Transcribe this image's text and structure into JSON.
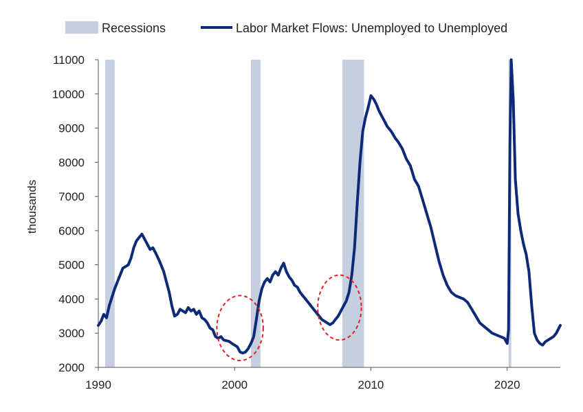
{
  "chart_data": {
    "type": "line",
    "title": "",
    "xlabel": "",
    "ylabel": "thousands",
    "xlim": [
      1990,
      2023.9
    ],
    "ylim": [
      2000,
      11000
    ],
    "x_ticks": [
      1990,
      2000,
      2010,
      2020
    ],
    "y_ticks": [
      2000,
      3000,
      4000,
      5000,
      6000,
      7000,
      8000,
      9000,
      10000,
      11000
    ],
    "grid": false,
    "legend_position": "top",
    "legend": [
      {
        "label": "Recessions",
        "kind": "area",
        "color": "#c5cfdf"
      },
      {
        "label": "Labor Market Flows: Unemployed to Unemployed",
        "kind": "line",
        "color": "#0d2a78"
      }
    ],
    "recessions": [
      {
        "start": 1990.5,
        "end": 1991.2
      },
      {
        "start": 2001.2,
        "end": 2001.9
      },
      {
        "start": 2007.9,
        "end": 2009.5
      },
      {
        "start": 2020.1,
        "end": 2020.3
      }
    ],
    "annotations": [
      {
        "kind": "dashed-ellipse",
        "color": "#e02020",
        "center": [
          2000.4,
          3150
        ],
        "radius": [
          1.7,
          950
        ]
      },
      {
        "kind": "dashed-ellipse",
        "color": "#e02020",
        "center": [
          2007.7,
          3750
        ],
        "radius": [
          1.6,
          950
        ]
      }
    ],
    "series": [
      {
        "name": "Labor Market Flows: Unemployed to Unemployed",
        "color": "#0d2a78",
        "points": [
          [
            1990.0,
            3230
          ],
          [
            1990.2,
            3350
          ],
          [
            1990.4,
            3550
          ],
          [
            1990.6,
            3450
          ],
          [
            1990.8,
            3800
          ],
          [
            1991.0,
            4050
          ],
          [
            1991.2,
            4300
          ],
          [
            1991.5,
            4600
          ],
          [
            1991.8,
            4900
          ],
          [
            1992.0,
            4950
          ],
          [
            1992.2,
            5000
          ],
          [
            1992.4,
            5200
          ],
          [
            1992.6,
            5500
          ],
          [
            1992.8,
            5700
          ],
          [
            1993.0,
            5800
          ],
          [
            1993.2,
            5900
          ],
          [
            1993.4,
            5750
          ],
          [
            1993.6,
            5600
          ],
          [
            1993.8,
            5450
          ],
          [
            1994.0,
            5500
          ],
          [
            1994.2,
            5350
          ],
          [
            1994.5,
            5100
          ],
          [
            1994.8,
            4800
          ],
          [
            1995.0,
            4500
          ],
          [
            1995.2,
            4200
          ],
          [
            1995.4,
            3800
          ],
          [
            1995.6,
            3500
          ],
          [
            1995.8,
            3550
          ],
          [
            1996.0,
            3700
          ],
          [
            1996.2,
            3650
          ],
          [
            1996.4,
            3600
          ],
          [
            1996.6,
            3750
          ],
          [
            1996.8,
            3650
          ],
          [
            1997.0,
            3700
          ],
          [
            1997.2,
            3550
          ],
          [
            1997.4,
            3650
          ],
          [
            1997.6,
            3450
          ],
          [
            1997.8,
            3400
          ],
          [
            1998.0,
            3300
          ],
          [
            1998.2,
            3150
          ],
          [
            1998.4,
            3100
          ],
          [
            1998.6,
            2900
          ],
          [
            1998.8,
            2850
          ],
          [
            1999.0,
            2900
          ],
          [
            1999.2,
            2800
          ],
          [
            1999.4,
            2780
          ],
          [
            1999.6,
            2760
          ],
          [
            1999.8,
            2700
          ],
          [
            2000.0,
            2650
          ],
          [
            2000.2,
            2600
          ],
          [
            2000.4,
            2450
          ],
          [
            2000.6,
            2420
          ],
          [
            2000.8,
            2450
          ],
          [
            2001.0,
            2550
          ],
          [
            2001.2,
            2700
          ],
          [
            2001.4,
            2900
          ],
          [
            2001.6,
            3400
          ],
          [
            2001.8,
            3950
          ],
          [
            2002.0,
            4300
          ],
          [
            2002.2,
            4500
          ],
          [
            2002.4,
            4600
          ],
          [
            2002.6,
            4500
          ],
          [
            2002.8,
            4700
          ],
          [
            2003.0,
            4800
          ],
          [
            2003.2,
            4700
          ],
          [
            2003.4,
            4900
          ],
          [
            2003.6,
            5050
          ],
          [
            2003.8,
            4800
          ],
          [
            2004.0,
            4650
          ],
          [
            2004.2,
            4550
          ],
          [
            2004.4,
            4400
          ],
          [
            2004.6,
            4350
          ],
          [
            2004.8,
            4200
          ],
          [
            2005.0,
            4100
          ],
          [
            2005.2,
            4000
          ],
          [
            2005.4,
            3900
          ],
          [
            2005.6,
            3800
          ],
          [
            2005.8,
            3700
          ],
          [
            2006.0,
            3600
          ],
          [
            2006.2,
            3500
          ],
          [
            2006.4,
            3400
          ],
          [
            2006.6,
            3350
          ],
          [
            2006.8,
            3300
          ],
          [
            2007.0,
            3250
          ],
          [
            2007.2,
            3300
          ],
          [
            2007.4,
            3400
          ],
          [
            2007.6,
            3500
          ],
          [
            2007.8,
            3650
          ],
          [
            2008.0,
            3800
          ],
          [
            2008.2,
            3950
          ],
          [
            2008.4,
            4200
          ],
          [
            2008.6,
            4700
          ],
          [
            2008.8,
            5500
          ],
          [
            2009.0,
            6800
          ],
          [
            2009.2,
            8000
          ],
          [
            2009.4,
            8900
          ],
          [
            2009.6,
            9300
          ],
          [
            2009.8,
            9600
          ],
          [
            2010.0,
            9950
          ],
          [
            2010.2,
            9850
          ],
          [
            2010.4,
            9700
          ],
          [
            2010.6,
            9500
          ],
          [
            2010.8,
            9350
          ],
          [
            2011.0,
            9200
          ],
          [
            2011.2,
            9050
          ],
          [
            2011.5,
            8900
          ],
          [
            2011.8,
            8700
          ],
          [
            2012.0,
            8600
          ],
          [
            2012.3,
            8400
          ],
          [
            2012.6,
            8100
          ],
          [
            2012.9,
            7900
          ],
          [
            2013.2,
            7500
          ],
          [
            2013.5,
            7300
          ],
          [
            2013.8,
            6900
          ],
          [
            2014.1,
            6500
          ],
          [
            2014.4,
            6100
          ],
          [
            2014.7,
            5600
          ],
          [
            2015.0,
            5100
          ],
          [
            2015.3,
            4700
          ],
          [
            2015.6,
            4400
          ],
          [
            2015.9,
            4200
          ],
          [
            2016.2,
            4100
          ],
          [
            2016.5,
            4050
          ],
          [
            2016.8,
            4000
          ],
          [
            2017.1,
            3900
          ],
          [
            2017.4,
            3700
          ],
          [
            2017.7,
            3500
          ],
          [
            2018.0,
            3300
          ],
          [
            2018.3,
            3200
          ],
          [
            2018.6,
            3100
          ],
          [
            2018.9,
            3000
          ],
          [
            2019.2,
            2950
          ],
          [
            2019.5,
            2900
          ],
          [
            2019.8,
            2850
          ],
          [
            2020.0,
            2700
          ],
          [
            2020.1,
            3100
          ],
          [
            2020.2,
            8500
          ],
          [
            2020.3,
            11000
          ],
          [
            2020.45,
            9800
          ],
          [
            2020.6,
            7500
          ],
          [
            2020.8,
            6500
          ],
          [
            2021.0,
            6000
          ],
          [
            2021.2,
            5600
          ],
          [
            2021.4,
            5300
          ],
          [
            2021.6,
            4800
          ],
          [
            2021.8,
            3800
          ],
          [
            2022.0,
            3000
          ],
          [
            2022.2,
            2800
          ],
          [
            2022.4,
            2700
          ],
          [
            2022.6,
            2650
          ],
          [
            2022.8,
            2750
          ],
          [
            2023.0,
            2800
          ],
          [
            2023.2,
            2850
          ],
          [
            2023.4,
            2900
          ],
          [
            2023.6,
            3000
          ],
          [
            2023.9,
            3230
          ]
        ]
      }
    ]
  }
}
